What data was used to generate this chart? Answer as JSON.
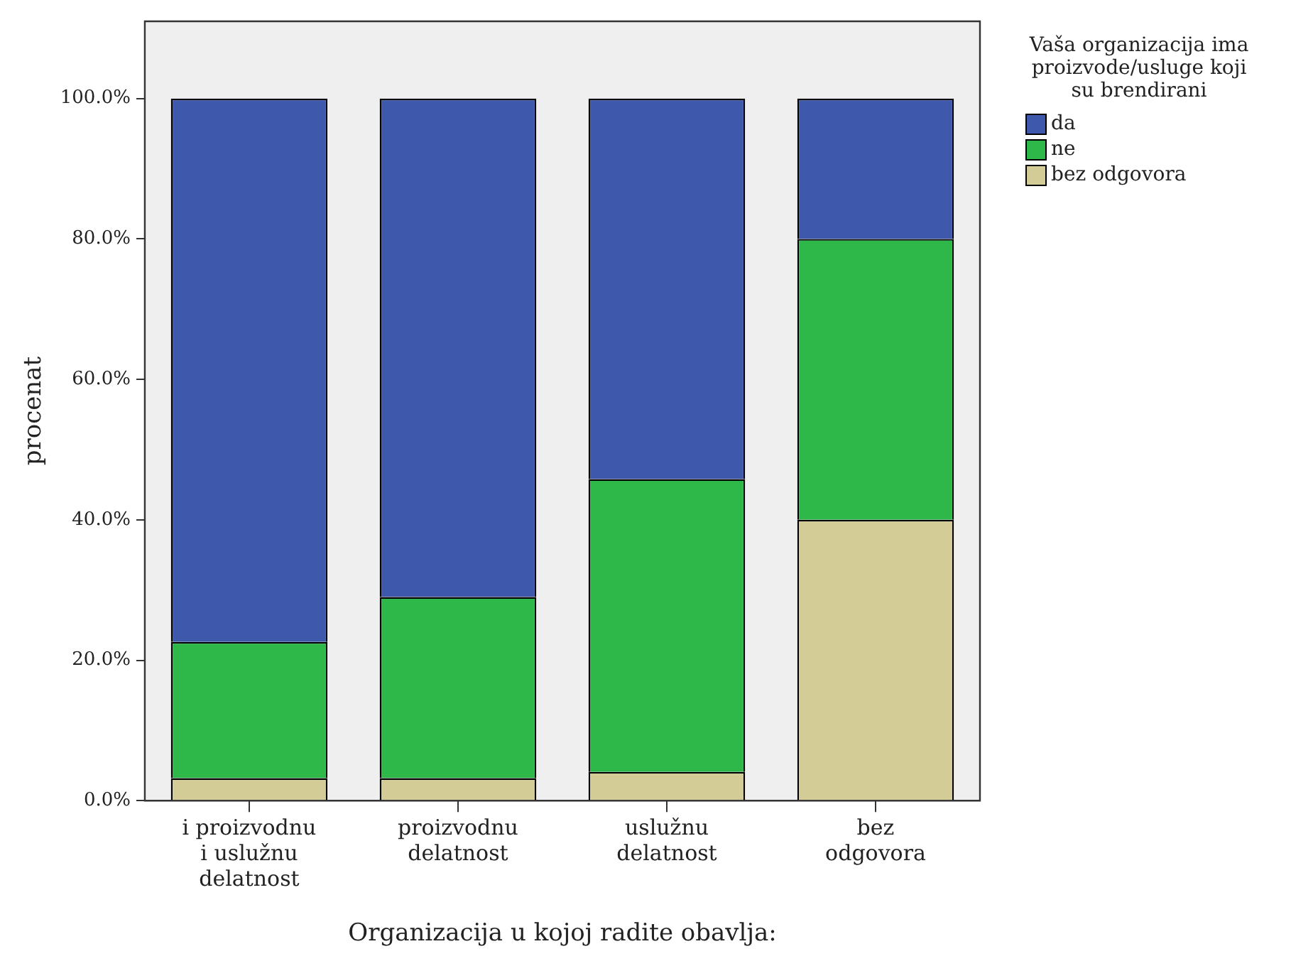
{
  "chart_data": {
    "type": "bar",
    "stacked": true,
    "xlabel": "Organizacija u kojoj radite obavlja:",
    "ylabel": "procenat",
    "legend_title": "Vaša organizacija ima proizvode/usluge koji su brendirani",
    "legend": "right",
    "grid": false,
    "categories": [
      "i proizvodnu i uslužnu delatnost",
      "proizvodnu delatnost",
      "uslužnu delatnost",
      "bez odgovora"
    ],
    "ylim": [
      0,
      111
    ],
    "yticks": [
      {
        "value": 0,
        "label": "0.0%"
      },
      {
        "value": 20,
        "label": "20.0%"
      },
      {
        "value": 40,
        "label": "40.0%"
      },
      {
        "value": 60,
        "label": "60.0%"
      },
      {
        "value": 80,
        "label": "80.0%"
      },
      {
        "value": 100,
        "label": "100.0%"
      }
    ],
    "series": [
      {
        "name": "bez odgovora",
        "color": "#d4cc96",
        "values": [
          3.2,
          3.2,
          4.1,
          40
        ]
      },
      {
        "name": "ne",
        "color": "#2eb84a",
        "values": [
          19.4,
          25.8,
          41.7,
          40
        ]
      },
      {
        "name": "da",
        "color": "#3e58ac",
        "values": [
          77.4,
          71.0,
          54.2,
          20
        ]
      }
    ]
  }
}
